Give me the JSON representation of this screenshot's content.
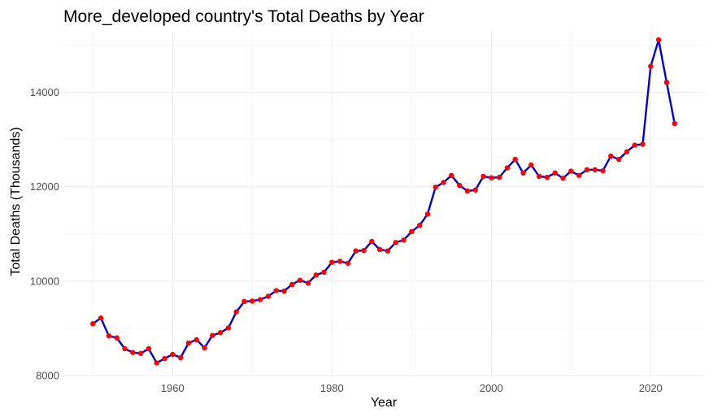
{
  "chart_data": {
    "type": "line",
    "title": "More_developed country's Total Deaths by Year",
    "xlabel": "Year",
    "ylabel": "Total Deaths (Thousands)",
    "xlim": [
      1946.3,
      2026.7
    ],
    "ylim": [
      7950,
      15300
    ],
    "x_ticks": [
      1960,
      1980,
      2000,
      2020
    ],
    "y_ticks": [
      8000,
      10000,
      12000,
      14000
    ],
    "grid": true,
    "line_color": "#0000cc",
    "point_color": "#ff0000",
    "series": [
      {
        "x": [
          1950,
          1951,
          1952,
          1953,
          1954,
          1955,
          1956,
          1957,
          1958,
          1959,
          1960,
          1961,
          1962,
          1963,
          1964,
          1965,
          1966,
          1967,
          1968,
          1969,
          1970,
          1971,
          1972,
          1973,
          1974,
          1975,
          1976,
          1977,
          1978,
          1979,
          1980,
          1981,
          1982,
          1983,
          1984,
          1985,
          1986,
          1987,
          1988,
          1989,
          1990,
          1991,
          1992,
          1993,
          1994,
          1995,
          1996,
          1997,
          1998,
          1999,
          2000,
          2001,
          2002,
          2003,
          2004,
          2005,
          2006,
          2007,
          2008,
          2009,
          2010,
          2011,
          2012,
          2013,
          2014,
          2015,
          2016,
          2017,
          2018,
          2019,
          2020,
          2021,
          2022,
          2023
        ],
        "values": [
          9100,
          9220,
          8840,
          8800,
          8570,
          8490,
          8470,
          8570,
          8270,
          8360,
          8450,
          8380,
          8690,
          8760,
          8590,
          8850,
          8910,
          9010,
          9350,
          9570,
          9580,
          9610,
          9680,
          9800,
          9790,
          9930,
          10020,
          9960,
          10130,
          10190,
          10400,
          10420,
          10380,
          10640,
          10650,
          10840,
          10670,
          10640,
          10820,
          10870,
          11050,
          11180,
          11420,
          11990,
          12090,
          12240,
          12030,
          11910,
          11930,
          12220,
          12190,
          12200,
          12400,
          12580,
          12290,
          12460,
          12220,
          12200,
          12290,
          12180,
          12330,
          12240,
          12360,
          12360,
          12340,
          12650,
          12580,
          12740,
          12880,
          12900,
          14550,
          15110,
          14210,
          13340
        ]
      }
    ]
  }
}
